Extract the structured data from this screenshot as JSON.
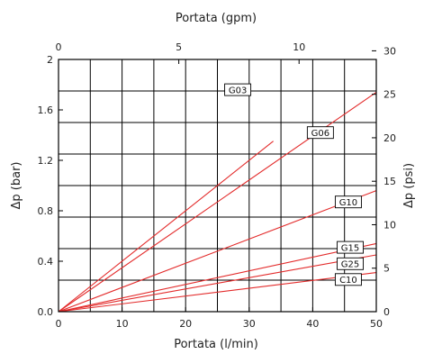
{
  "chart_data": {
    "type": "line",
    "x": [
      0,
      50
    ],
    "xlim": [
      0,
      50
    ],
    "ylim": [
      0,
      2
    ],
    "xlabel": "Portata (l/min)",
    "ylabel": "Δp (bar)",
    "x2label": "Portata (gpm)",
    "y2label": "Δp (psi)",
    "x_ticks": [
      "0",
      "10",
      "20",
      "30",
      "40",
      "50"
    ],
    "y_ticks": [
      "0.0",
      "0.4",
      "0.8",
      "1.2",
      "1.6",
      "2"
    ],
    "x2_ticks": [
      "0",
      "5",
      "10"
    ],
    "x2_tick_values": [
      0,
      5,
      10
    ],
    "x2_to_x_factor": 3.785,
    "y2_ticks": [
      "0",
      "5",
      "10",
      "15",
      "20",
      "25",
      "30"
    ],
    "y2_tick_values": [
      0,
      5,
      10,
      15,
      20,
      25,
      30
    ],
    "y2_to_y_factor": 0.0689476,
    "x_grid": [
      5,
      10,
      15,
      20,
      25,
      30,
      35,
      40,
      45
    ],
    "y_grid": [
      0.25,
      0.5,
      0.75,
      1.0,
      1.25,
      1.5,
      1.75
    ],
    "grid": true,
    "series": [
      {
        "name": "G03",
        "values": [
          0,
          2.0
        ],
        "x_end": 33.8
      },
      {
        "name": "G06",
        "values": [
          0,
          1.74
        ],
        "x_end": 50
      },
      {
        "name": "G10",
        "values": [
          0,
          0.96
        ],
        "x_end": 50
      },
      {
        "name": "G15",
        "values": [
          0,
          0.54
        ],
        "x_end": 50
      },
      {
        "name": "G25",
        "values": [
          0,
          0.45
        ],
        "x_end": 50
      },
      {
        "name": "C10",
        "values": [
          0,
          0.31
        ],
        "x_end": 50
      }
    ],
    "series_color": "#e32b2b"
  }
}
